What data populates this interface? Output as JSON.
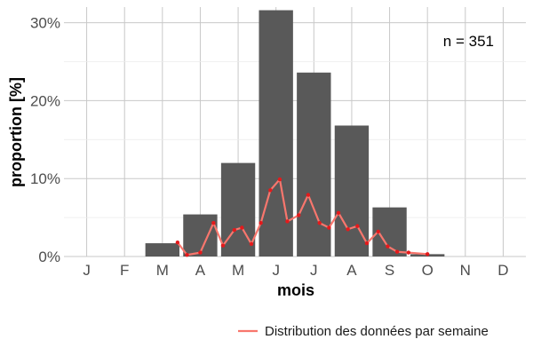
{
  "chart_data": {
    "type": "bar",
    "xlabel": "mois",
    "ylabel": "proportion [%]",
    "categories": [
      "J",
      "F",
      "M",
      "A",
      "M",
      "J",
      "J",
      "A",
      "S",
      "O",
      "N",
      "D"
    ],
    "ylim": [
      0,
      32
    ],
    "yticks": [
      0,
      10,
      20,
      30
    ],
    "ytick_labels": [
      "0%",
      "10%",
      "20%",
      "30%"
    ],
    "grid": true,
    "annotation": "n = 351",
    "series": [
      {
        "kind": "bar",
        "color": "#595959",
        "values": [
          0,
          0,
          1.7,
          5.4,
          12.0,
          31.6,
          23.6,
          16.8,
          6.3,
          0.3,
          0,
          0
        ]
      },
      {
        "kind": "line",
        "name": "Distribution des données par semaine",
        "color": "#f8766d",
        "point_color": "#e41a1c",
        "x": [
          3.4,
          3.65,
          4.0,
          4.35,
          4.6,
          4.9,
          5.1,
          5.35,
          5.6,
          5.85,
          6.1,
          6.3,
          6.6,
          6.85,
          7.15,
          7.4,
          7.65,
          7.9,
          8.15,
          8.4,
          8.7,
          8.95,
          9.2,
          9.5,
          10.0
        ],
        "y": [
          1.8,
          0.2,
          0.5,
          4.3,
          1.4,
          3.4,
          3.7,
          1.6,
          4.3,
          8.5,
          9.9,
          4.5,
          5.3,
          7.9,
          4.3,
          3.7,
          5.6,
          3.5,
          3.9,
          1.7,
          3.2,
          1.3,
          0.6,
          0.5,
          0.3
        ]
      }
    ],
    "legend": {
      "position": "bottom-right",
      "label": "Distribution des données par semaine"
    }
  }
}
